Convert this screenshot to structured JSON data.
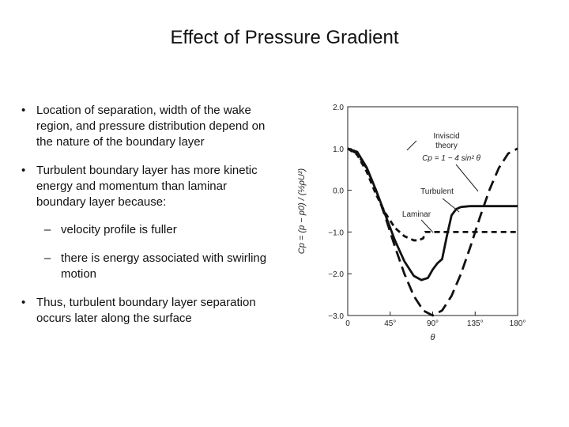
{
  "slide": {
    "title": "Effect of Pressure Gradient",
    "bullets": [
      "Location of separation, width of the wake region, and pressure distribution depend on the nature of the boundary layer",
      "Turbulent boundary layer has more kinetic energy and momentum than laminar boundary layer because:"
    ],
    "sub_bullets": [
      "velocity profile is fuller",
      "there is energy associated with swirling motion"
    ],
    "last_bullet": "Thus, turbulent boundary layer separation occurs later along the surface",
    "bullet_glyph": "•",
    "dash_glyph": "–"
  },
  "chart_data": {
    "type": "line",
    "xlabel": "θ",
    "ylabel": "Cp = (p − p0) / (½ρU²)",
    "xlim": [
      0,
      180
    ],
    "ylim": [
      -3.0,
      2.0
    ],
    "x_ticks": [
      "0",
      "45°",
      "90°",
      "135°",
      "180°"
    ],
    "y_ticks": [
      "2.0",
      "1.0",
      "0.0",
      "−1.0",
      "−2.0",
      "−3.0"
    ],
    "annotations": {
      "inviscid": [
        "Inviscid",
        "theory"
      ],
      "inviscid_formula": "Cp = 1 − 4 sin² θ",
      "turbulent": "Turbulent",
      "laminar": "Laminar"
    },
    "series": [
      {
        "name": "Inviscid theory",
        "style": "long-dash",
        "x": [
          0,
          10,
          20,
          30,
          40,
          50,
          60,
          70,
          80,
          90,
          100,
          110,
          120,
          130,
          140,
          150,
          160,
          170,
          180
        ],
        "y": [
          1.0,
          0.88,
          0.53,
          0.0,
          -0.65,
          -1.35,
          -2.0,
          -2.53,
          -2.88,
          -3.0,
          -2.88,
          -2.53,
          -2.0,
          -1.35,
          -0.65,
          0.0,
          0.53,
          0.88,
          1.0
        ]
      },
      {
        "name": "Laminar",
        "style": "short-dash",
        "x": [
          0,
          10,
          20,
          30,
          40,
          50,
          60,
          70,
          75,
          80,
          82,
          90,
          100,
          180
        ],
        "y": [
          1.0,
          0.85,
          0.45,
          -0.1,
          -0.55,
          -0.9,
          -1.1,
          -1.2,
          -1.2,
          -1.15,
          -1.0,
          -1.0,
          -1.0,
          -1.0
        ]
      },
      {
        "name": "Turbulent",
        "style": "solid",
        "x": [
          0,
          10,
          20,
          30,
          40,
          50,
          60,
          70,
          78,
          85,
          90,
          95,
          100,
          105,
          110,
          115,
          120,
          130,
          140,
          160,
          180
        ],
        "y": [
          1.0,
          0.92,
          0.55,
          0.0,
          -0.6,
          -1.2,
          -1.7,
          -2.05,
          -2.15,
          -2.1,
          -1.9,
          -1.75,
          -1.65,
          -1.1,
          -0.6,
          -0.45,
          -0.4,
          -0.38,
          -0.38,
          -0.38,
          -0.38
        ]
      }
    ]
  }
}
